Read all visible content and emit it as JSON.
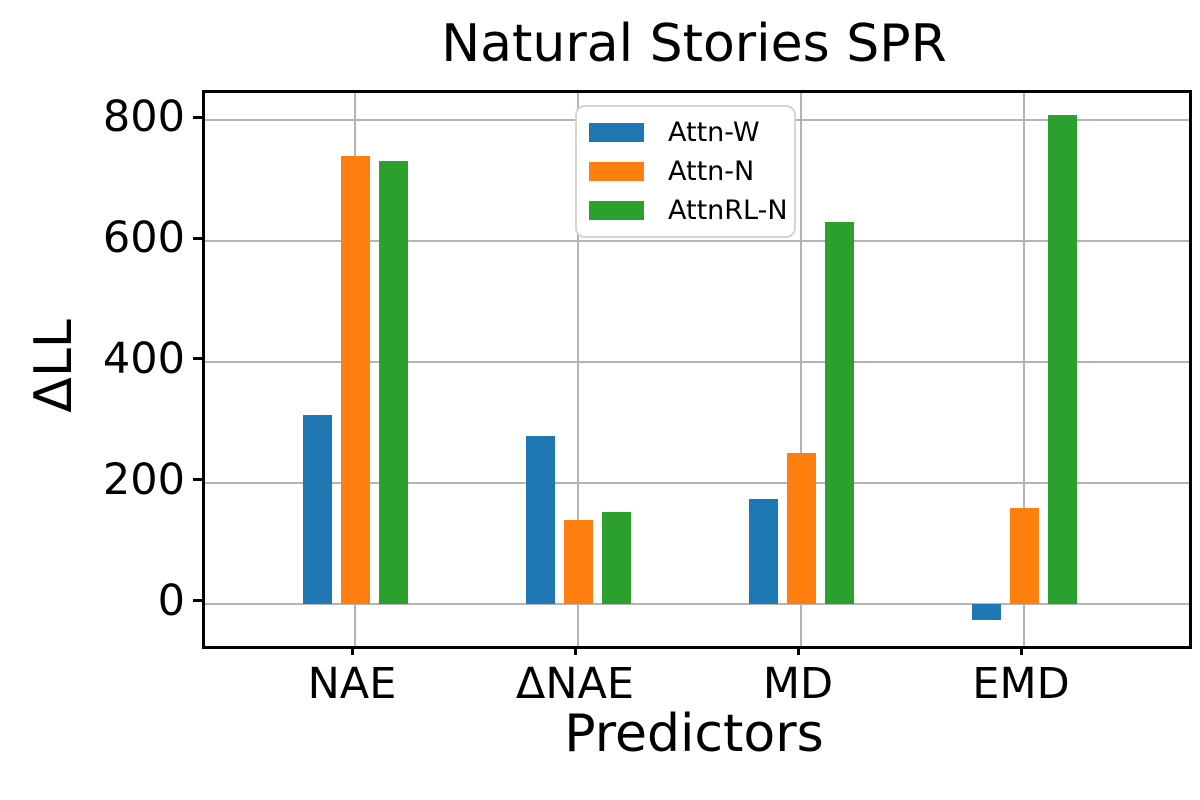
{
  "chart_data": {
    "type": "bar",
    "title": "Natural Stories SPR",
    "xlabel": "Predictors",
    "ylabel": "ΔLL",
    "categories": [
      "NAE",
      "ΔNAE",
      "MD",
      "EMD"
    ],
    "series": [
      {
        "name": "Attn-W",
        "color": "#1f77b4",
        "values": [
          313,
          278,
          173,
          -27
        ]
      },
      {
        "name": "Attn-N",
        "color": "#ff7f0e",
        "values": [
          740,
          139,
          250,
          158
        ]
      },
      {
        "name": "AttnRL-N",
        "color": "#2ca02c",
        "values": [
          733,
          152,
          632,
          808
        ]
      }
    ],
    "yticks": [
      0,
      200,
      400,
      600,
      800
    ],
    "ytick_labels": [
      "0",
      "200",
      "400",
      "600",
      "800"
    ],
    "ylim": [
      -70,
      845
    ],
    "grid": true,
    "gridline_color": "#b4b4b4",
    "legend_position": "upper center"
  }
}
